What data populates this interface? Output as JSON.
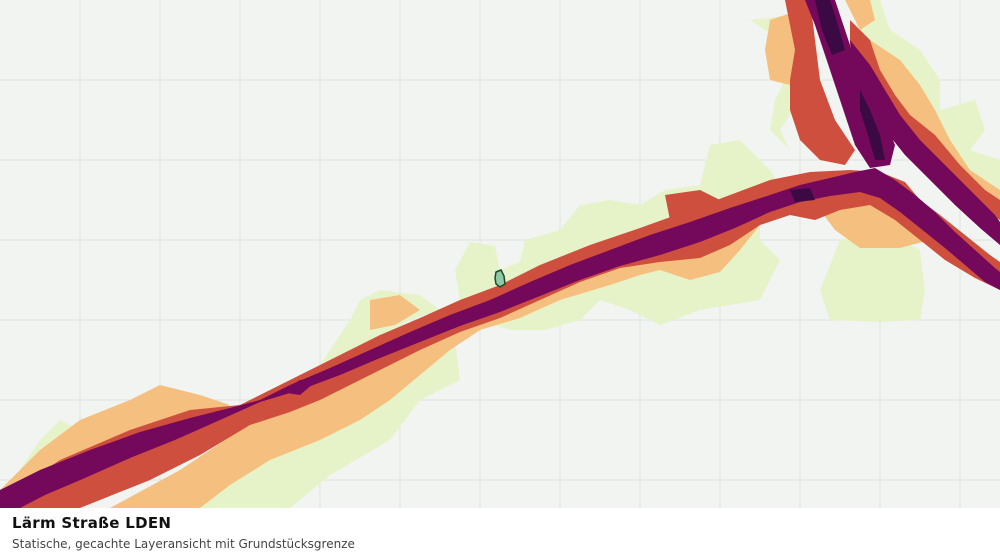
{
  "map": {
    "layer_title": "Lärm Straße LDEN",
    "layer_subtitle": "Statische, gecachte Layeransicht mit Grundstücksgrenze",
    "background_color": "#f2f4f2",
    "grid_color": "#dfe3df",
    "noise_colors": {
      "band_1": "#e6f3c8",
      "band_2": "#f5c07f",
      "band_3": "#cf4f3f",
      "band_4": "#74085a",
      "band_5": "#3b0a45"
    },
    "parcel": {
      "fill": "#8fc9a6",
      "stroke": "#1a4a2e"
    }
  }
}
